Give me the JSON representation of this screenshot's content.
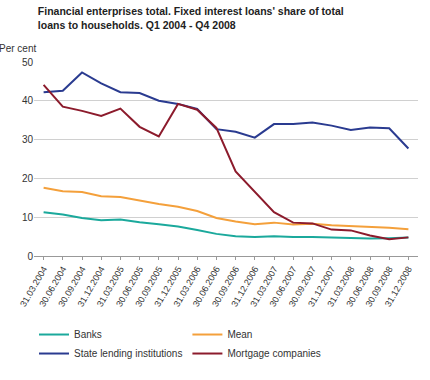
{
  "chart_data": {
    "type": "line",
    "title": [
      "Financial enterprises total. Fixed interest loans' share of total",
      "loans to households. Q1 2004 - Q4 2008"
    ],
    "y_label": "Per cent",
    "categories": [
      "31.03.2004",
      "30.06.2004",
      "30.09.2004",
      "31.12.2004",
      "31.03.2005",
      "30.06.2005",
      "30.09.2005",
      "31.12.2005",
      "31.03.2006",
      "30.06.2006",
      "30.09.2006",
      "31.12.2006",
      "31.03.2007",
      "30.06.2007",
      "30.09.2007",
      "31.12.2007",
      "31.03.2008",
      "30.06.2008",
      "30.09.2008",
      "31.12.2008"
    ],
    "series": [
      {
        "name": "Banks",
        "color": "#1ba99c",
        "values": [
          11.3,
          10.7,
          9.8,
          9.2,
          9.4,
          8.7,
          8.2,
          7.6,
          6.7,
          5.7,
          5.1,
          4.9,
          5.1,
          4.9,
          4.9,
          4.8,
          4.6,
          4.5,
          4.6,
          4.8
        ]
      },
      {
        "name": "Mean",
        "color": "#f4a03b",
        "values": [
          17.6,
          16.7,
          16.5,
          15.4,
          15.2,
          14.3,
          13.4,
          12.7,
          11.6,
          9.8,
          8.9,
          8.2,
          8.6,
          8.1,
          8.3,
          7.9,
          7.7,
          7.6,
          7.3,
          6.9
        ]
      },
      {
        "name": "State lending institutions",
        "color": "#2a3b90",
        "values": [
          42.2,
          42.6,
          47.3,
          44.5,
          42.2,
          42.0,
          40.0,
          39.2,
          37.9,
          32.7,
          32.0,
          30.5,
          34.0,
          34.0,
          34.4,
          33.6,
          32.5,
          33.1,
          32.9,
          27.7
        ]
      },
      {
        "name": "Mortgage companies",
        "color": "#8c1b2c",
        "values": [
          44.1,
          38.5,
          37.4,
          36.1,
          38.0,
          33.3,
          30.8,
          39.2,
          37.7,
          33.0,
          21.8,
          16.5,
          11.3,
          8.6,
          8.4,
          6.8,
          6.6,
          5.3,
          4.3,
          4.8
        ]
      }
    ],
    "ylim": [
      0,
      50
    ],
    "yticks": [
      0,
      10,
      20,
      30,
      40,
      50
    ],
    "grid": true,
    "legend": "bottom"
  }
}
